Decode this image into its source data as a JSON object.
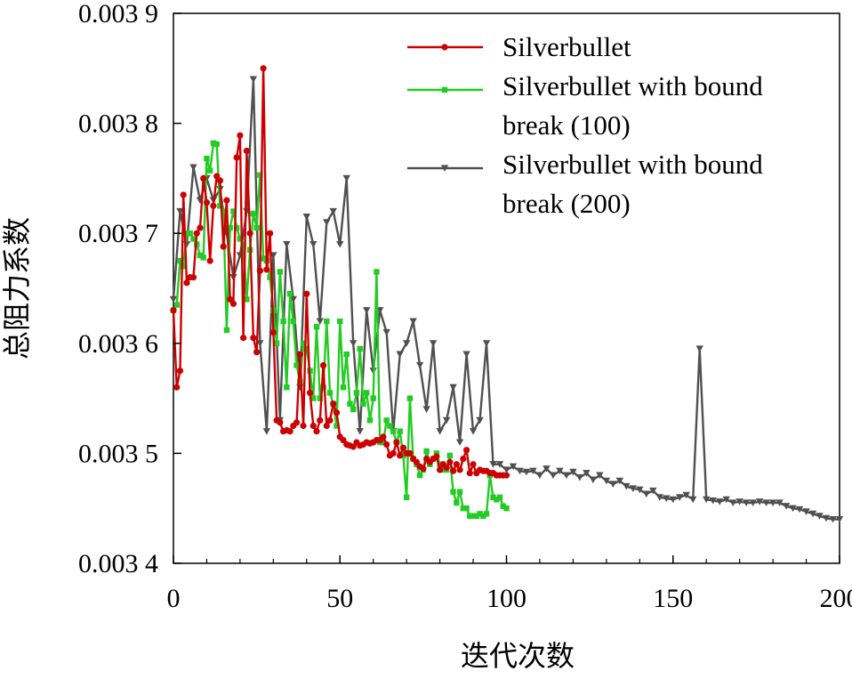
{
  "chart_data": {
    "type": "line",
    "title": "",
    "xlabel": "迭代次数",
    "ylabel": "总阻力系数",
    "xlim": [
      0,
      200
    ],
    "ylim": [
      0.0034,
      0.0039
    ],
    "xticks": [
      0,
      50,
      100,
      150,
      200
    ],
    "xtick_labels": [
      "0",
      "50",
      "100",
      "150",
      "200"
    ],
    "yticks": [
      0.0034,
      0.0035,
      0.0036,
      0.0037,
      0.0038,
      0.0039
    ],
    "ytick_labels": [
      "0.003 4",
      "0.003 5",
      "0.003 6",
      "0.003 7",
      "0.003 8",
      "0.003 9"
    ],
    "grid": false,
    "legend_position": "top-right",
    "series": [
      {
        "name": "Silverbullet",
        "name_lines": [
          "Silverbullet"
        ],
        "color": "#cc0000",
        "marker": "circle",
        "x": [
          0,
          1,
          2,
          3,
          4,
          5,
          6,
          7,
          8,
          9,
          10,
          11,
          12,
          13,
          14,
          15,
          16,
          17,
          18,
          19,
          20,
          21,
          22,
          23,
          24,
          25,
          26,
          27,
          28,
          29,
          30,
          31,
          32,
          33,
          34,
          35,
          36,
          37,
          38,
          39,
          40,
          41,
          42,
          43,
          44,
          45,
          46,
          47,
          48,
          49,
          50,
          51,
          52,
          53,
          54,
          55,
          56,
          57,
          58,
          59,
          60,
          61,
          62,
          63,
          64,
          65,
          66,
          67,
          68,
          69,
          70,
          71,
          72,
          73,
          74,
          75,
          76,
          77,
          78,
          79,
          80,
          81,
          82,
          83,
          84,
          85,
          86,
          87,
          88,
          89,
          90,
          91,
          92,
          93,
          94,
          95,
          96,
          97,
          98,
          99,
          100
        ],
        "y": [
          0.00363,
          0.00356,
          0.003575,
          0.003735,
          0.003655,
          0.00366,
          0.00366,
          0.0037,
          0.003705,
          0.00375,
          0.003728,
          0.003675,
          0.003725,
          0.003752,
          0.003748,
          0.003688,
          0.00373,
          0.00364,
          0.003636,
          0.003769,
          0.003789,
          0.003605,
          0.003775,
          0.0037,
          0.003605,
          0.003592,
          0.003666,
          0.00385,
          0.003667,
          0.0037,
          0.00361,
          0.00353,
          0.003528,
          0.00352,
          0.003521,
          0.00352,
          0.003525,
          0.003528,
          0.00359,
          0.003525,
          0.003645,
          0.003555,
          0.003525,
          0.00352,
          0.00353,
          0.00358,
          0.003525,
          0.00353,
          0.003545,
          0.003537,
          0.003515,
          0.003512,
          0.003508,
          0.003507,
          0.003506,
          0.00351,
          0.003507,
          0.003508,
          0.00351,
          0.003509,
          0.00351,
          0.003512,
          0.003512,
          0.003515,
          0.003508,
          0.003498,
          0.0035,
          0.00351,
          0.003498,
          0.003505,
          0.0035,
          0.0035,
          0.003495,
          0.003492,
          0.003488,
          0.003486,
          0.003495,
          0.003492,
          0.003495,
          0.003497,
          0.003485,
          0.00349,
          0.003487,
          0.003492,
          0.003484,
          0.00349,
          0.003485,
          0.003495,
          0.003503,
          0.003482,
          0.00349,
          0.003482,
          0.003485,
          0.003484,
          0.003484,
          0.003482,
          0.003482,
          0.00348,
          0.00348,
          0.00348,
          0.00348
        ]
      },
      {
        "name": "Silverbullet with bound break (100)",
        "name_lines": [
          "Silverbullet with bound",
          "break (100)"
        ],
        "color": "#22cc22",
        "marker": "square",
        "x": [
          0,
          1,
          2,
          3,
          4,
          5,
          6,
          7,
          8,
          9,
          10,
          11,
          12,
          13,
          14,
          15,
          16,
          17,
          18,
          19,
          20,
          21,
          22,
          23,
          24,
          25,
          26,
          27,
          28,
          29,
          30,
          31,
          32,
          33,
          34,
          35,
          36,
          37,
          38,
          39,
          40,
          41,
          42,
          43,
          44,
          45,
          46,
          47,
          48,
          49,
          50,
          51,
          52,
          53,
          54,
          55,
          56,
          57,
          58,
          59,
          60,
          61,
          62,
          63,
          64,
          65,
          66,
          67,
          68,
          69,
          70,
          71,
          72,
          73,
          74,
          75,
          76,
          77,
          78,
          79,
          80,
          81,
          82,
          83,
          84,
          85,
          86,
          87,
          88,
          89,
          90,
          91,
          92,
          93,
          94,
          95,
          96,
          97,
          98,
          99,
          100
        ],
        "y": [
          0.00363,
          0.003635,
          0.003675,
          0.00367,
          0.0037,
          0.0037,
          0.003695,
          0.00369,
          0.00368,
          0.003678,
          0.003768,
          0.003757,
          0.003782,
          0.003781,
          0.003725,
          0.00372,
          0.003612,
          0.003705,
          0.00372,
          0.003705,
          0.003695,
          0.00369,
          0.00364,
          0.003685,
          0.003718,
          0.003705,
          0.003753,
          0.003677,
          0.003675,
          0.00366,
          0.00363,
          0.0036,
          0.003665,
          0.00362,
          0.00356,
          0.003645,
          0.00362,
          0.00358,
          0.003565,
          0.0036,
          0.003595,
          0.003575,
          0.00355,
          0.003615,
          0.00355,
          0.00356,
          0.00362,
          0.003555,
          0.003545,
          0.003525,
          0.00362,
          0.00356,
          0.00359,
          0.003545,
          0.00354,
          0.003555,
          0.003595,
          0.003545,
          0.003555,
          0.00353,
          0.00355,
          0.003665,
          0.00351,
          0.00351,
          0.00353,
          0.003525,
          0.00352,
          0.00351,
          0.00352,
          0.003498,
          0.00346,
          0.00355,
          0.003495,
          0.00349,
          0.00348,
          0.003485,
          0.003502,
          0.00349,
          0.003495,
          0.0035,
          0.00349,
          0.003485,
          0.003485,
          0.003498,
          0.003465,
          0.003455,
          0.003465,
          0.00345,
          0.00345,
          0.003443,
          0.003443,
          0.003443,
          0.003445,
          0.003443,
          0.003445,
          0.00348,
          0.00346,
          0.003458,
          0.00346,
          0.003452,
          0.00345
        ]
      },
      {
        "name": "Silverbullet with bound break (200)",
        "name_lines": [
          "Silverbullet with bound",
          "break (200)"
        ],
        "color": "#505050",
        "marker": "triangle-down",
        "x": [
          0,
          2,
          4,
          6,
          8,
          10,
          12,
          14,
          16,
          18,
          20,
          22,
          24,
          26,
          28,
          30,
          32,
          34,
          36,
          38,
          40,
          42,
          44,
          46,
          48,
          50,
          52,
          54,
          56,
          58,
          60,
          62,
          64,
          66,
          68,
          70,
          72,
          74,
          76,
          78,
          80,
          82,
          84,
          86,
          88,
          90,
          92,
          94,
          96,
          98,
          100,
          102,
          104,
          106,
          108,
          110,
          112,
          114,
          116,
          118,
          120,
          122,
          124,
          126,
          128,
          130,
          132,
          134,
          136,
          138,
          140,
          142,
          144,
          146,
          148,
          150,
          152,
          154,
          156,
          158,
          160,
          162,
          164,
          166,
          168,
          170,
          172,
          174,
          176,
          178,
          180,
          182,
          184,
          186,
          188,
          190,
          192,
          194,
          196,
          198,
          200
        ],
        "y": [
          0.00364,
          0.00372,
          0.00369,
          0.00376,
          0.00373,
          0.00375,
          0.00373,
          0.00374,
          0.0037,
          0.00366,
          0.00368,
          0.00372,
          0.00384,
          0.0036,
          0.00352,
          0.00368,
          0.00353,
          0.00369,
          0.00364,
          0.00356,
          0.003715,
          0.00369,
          0.00362,
          0.00371,
          0.00372,
          0.00369,
          0.00375,
          0.0036,
          0.00352,
          0.00363,
          0.003575,
          0.00363,
          0.00361,
          0.00352,
          0.00359,
          0.0036,
          0.00362,
          0.00358,
          0.00354,
          0.0036,
          0.00352,
          0.00353,
          0.00356,
          0.00351,
          0.00359,
          0.00352,
          0.00353,
          0.0036,
          0.00349,
          0.00349,
          0.003485,
          0.003488,
          0.003484,
          0.003483,
          0.003484,
          0.00348,
          0.003486,
          0.00348,
          0.003484,
          0.00348,
          0.003483,
          0.003478,
          0.003482,
          0.003476,
          0.00348,
          0.003475,
          0.003472,
          0.003475,
          0.00347,
          0.003468,
          0.003467,
          0.003463,
          0.003466,
          0.00346,
          0.003459,
          0.003458,
          0.00346,
          0.003462,
          0.003458,
          0.003595,
          0.003458,
          0.003457,
          0.003456,
          0.003458,
          0.003455,
          0.003456,
          0.003455,
          0.003455,
          0.003456,
          0.003455,
          0.003455,
          0.003455,
          0.003452,
          0.00345,
          0.003449,
          0.003447,
          0.003445,
          0.003443,
          0.003441,
          0.00344,
          0.00344
        ]
      }
    ]
  }
}
